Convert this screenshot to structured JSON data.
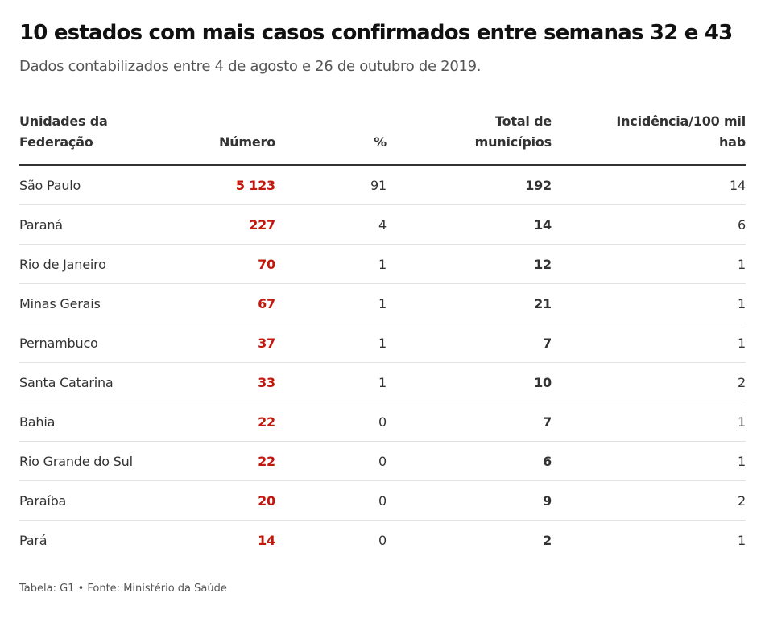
{
  "title": "10 estados com mais casos confirmados entre semanas 32 e 43",
  "subtitle": "Dados contabilizados entre 4 de agosto e 26 de outubro de 2019.",
  "table": {
    "headers": {
      "estado": [
        "Unidades da",
        "Federação"
      ],
      "numero": "Número",
      "percent": "%",
      "municipios": [
        "Total de",
        "municípios"
      ],
      "incidencia": [
        "Incidência/100 mil",
        "hab"
      ]
    },
    "rows": [
      {
        "estado": "São Paulo",
        "numero": "5 123",
        "percent": "91",
        "municipios": "192",
        "incidencia": "14"
      },
      {
        "estado": "Paraná",
        "numero": "227",
        "percent": "4",
        "municipios": "14",
        "incidencia": "6"
      },
      {
        "estado": "Rio de Janeiro",
        "numero": "70",
        "percent": "1",
        "municipios": "12",
        "incidencia": "1"
      },
      {
        "estado": "Minas Gerais",
        "numero": "67",
        "percent": "1",
        "municipios": "21",
        "incidencia": "1"
      },
      {
        "estado": "Pernambuco",
        "numero": "37",
        "percent": "1",
        "municipios": "7",
        "incidencia": "1"
      },
      {
        "estado": "Santa Catarina",
        "numero": "33",
        "percent": "1",
        "municipios": "10",
        "incidencia": "2"
      },
      {
        "estado": "Bahia",
        "numero": "22",
        "percent": "0",
        "municipios": "7",
        "incidencia": "1"
      },
      {
        "estado": "Rio Grande do Sul",
        "numero": "22",
        "percent": "0",
        "municipios": "6",
        "incidencia": "1"
      },
      {
        "estado": "Paraíba",
        "numero": "20",
        "percent": "0",
        "municipios": "9",
        "incidencia": "2"
      },
      {
        "estado": "Pará",
        "numero": "14",
        "percent": "0",
        "municipios": "2",
        "incidencia": "1"
      }
    ]
  },
  "footer": "Tabela: G1 • Fonte: Ministério da Saúde",
  "colors": {
    "highlight_number": "#c4170c",
    "text": "#333333"
  }
}
